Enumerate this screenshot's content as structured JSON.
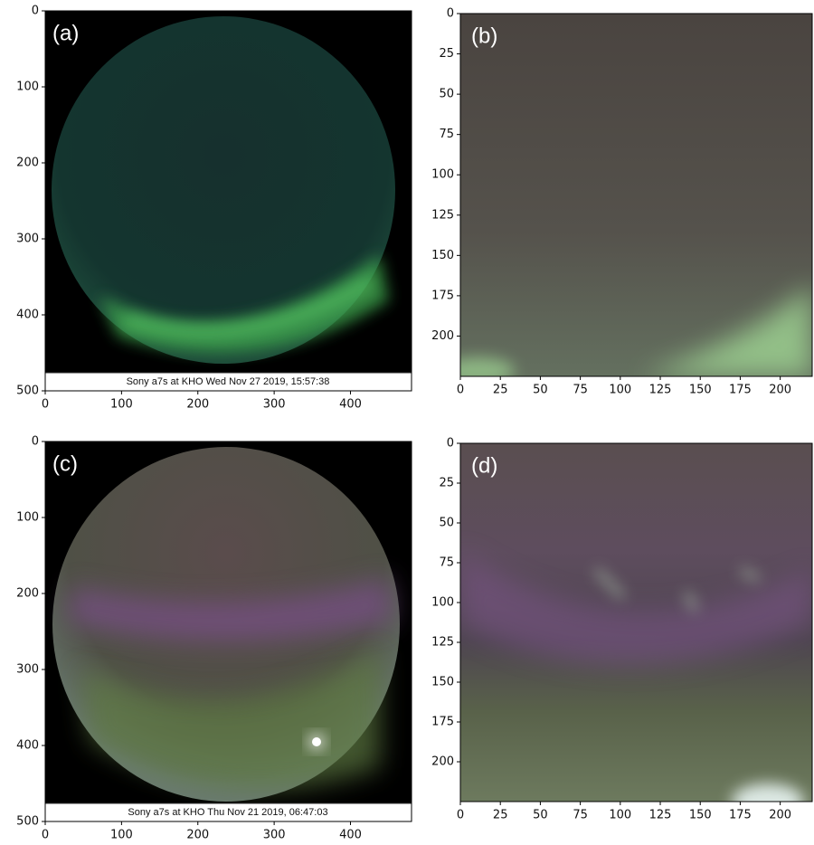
{
  "panels": [
    {
      "label": "(a)",
      "caption": "Sony a7s at KHO Wed Nov 27 2019, 15:57:38",
      "xlim": [
        0,
        480
      ],
      "ylim": [
        500,
        0
      ],
      "xticks": [
        0,
        100,
        200,
        300,
        400
      ],
      "yticks": [
        0,
        100,
        200,
        300,
        400,
        500
      ]
    },
    {
      "label": "(b)",
      "xlim": [
        0,
        220
      ],
      "ylim": [
        225,
        0
      ],
      "xticks": [
        0,
        25,
        50,
        75,
        100,
        125,
        150,
        175,
        200
      ],
      "yticks": [
        0,
        25,
        50,
        75,
        100,
        125,
        150,
        175,
        200
      ]
    },
    {
      "label": "(c)",
      "caption": "Sony a7s at KHO Thu Nov 21 2019, 06:47:03",
      "xlim": [
        0,
        480
      ],
      "ylim": [
        500,
        0
      ],
      "xticks": [
        0,
        100,
        200,
        300,
        400
      ],
      "yticks": [
        0,
        100,
        200,
        300,
        400,
        500
      ]
    },
    {
      "label": "(d)",
      "xlim": [
        0,
        220
      ],
      "ylim": [
        225,
        0
      ],
      "xticks": [
        0,
        25,
        50,
        75,
        100,
        125,
        150,
        175,
        200
      ],
      "yticks": [
        0,
        25,
        50,
        75,
        100,
        125,
        150,
        175,
        200
      ]
    }
  ]
}
